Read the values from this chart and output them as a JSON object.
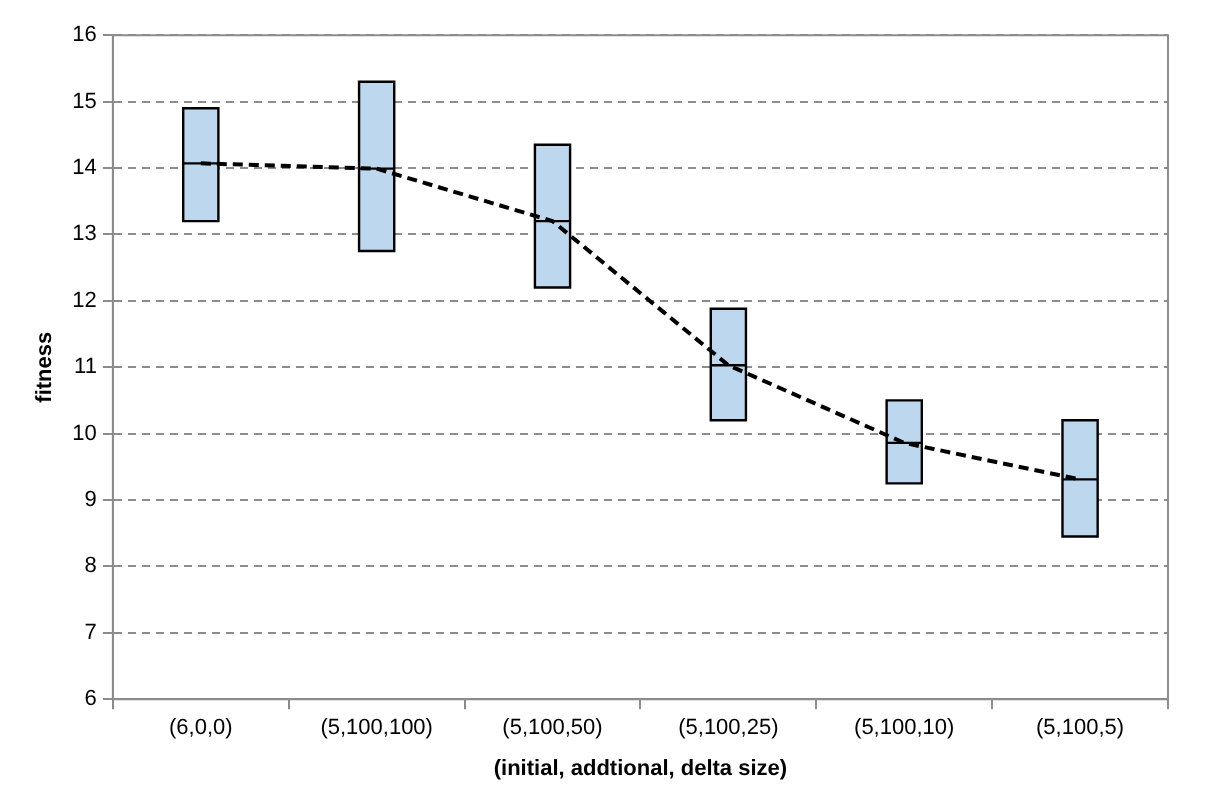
{
  "chart_data": {
    "type": "box",
    "xlabel": "(initial, addtional, delta size)",
    "ylabel": "fitness",
    "categories": [
      "(6,0,0)",
      "(5,100,100)",
      "(5,100,50)",
      "(5,100,25)",
      "(5,100,10)",
      "(5,100,5)"
    ],
    "ylim": [
      6,
      16
    ],
    "yticks": [
      6,
      7,
      8,
      9,
      10,
      11,
      12,
      13,
      14,
      15,
      16
    ],
    "grid": "y",
    "series": [
      {
        "type": "box",
        "color": "#bdd7ee",
        "boxes": [
          {
            "low": 13.2,
            "q1": 13.2,
            "median": 14.07,
            "q3": 14.9,
            "high": 14.9
          },
          {
            "low": 12.75,
            "q1": 12.75,
            "median": 13.99,
            "q3": 15.3,
            "high": 15.3
          },
          {
            "low": 12.2,
            "q1": 12.2,
            "median": 13.2,
            "q3": 14.35,
            "high": 14.35
          },
          {
            "low": 10.2,
            "q1": 10.2,
            "median": 11.03,
            "q3": 11.88,
            "high": 11.88
          },
          {
            "low": 9.25,
            "q1": 9.25,
            "median": 9.86,
            "q3": 10.5,
            "high": 10.5
          },
          {
            "low": 8.45,
            "q1": 8.45,
            "median": 9.31,
            "q3": 10.2,
            "high": 10.2
          }
        ]
      },
      {
        "type": "line",
        "color": "#000000",
        "line_style": "dashed",
        "marker": "none",
        "values": [
          14.07,
          13.99,
          13.2,
          11.03,
          9.86,
          9.31
        ]
      }
    ]
  }
}
